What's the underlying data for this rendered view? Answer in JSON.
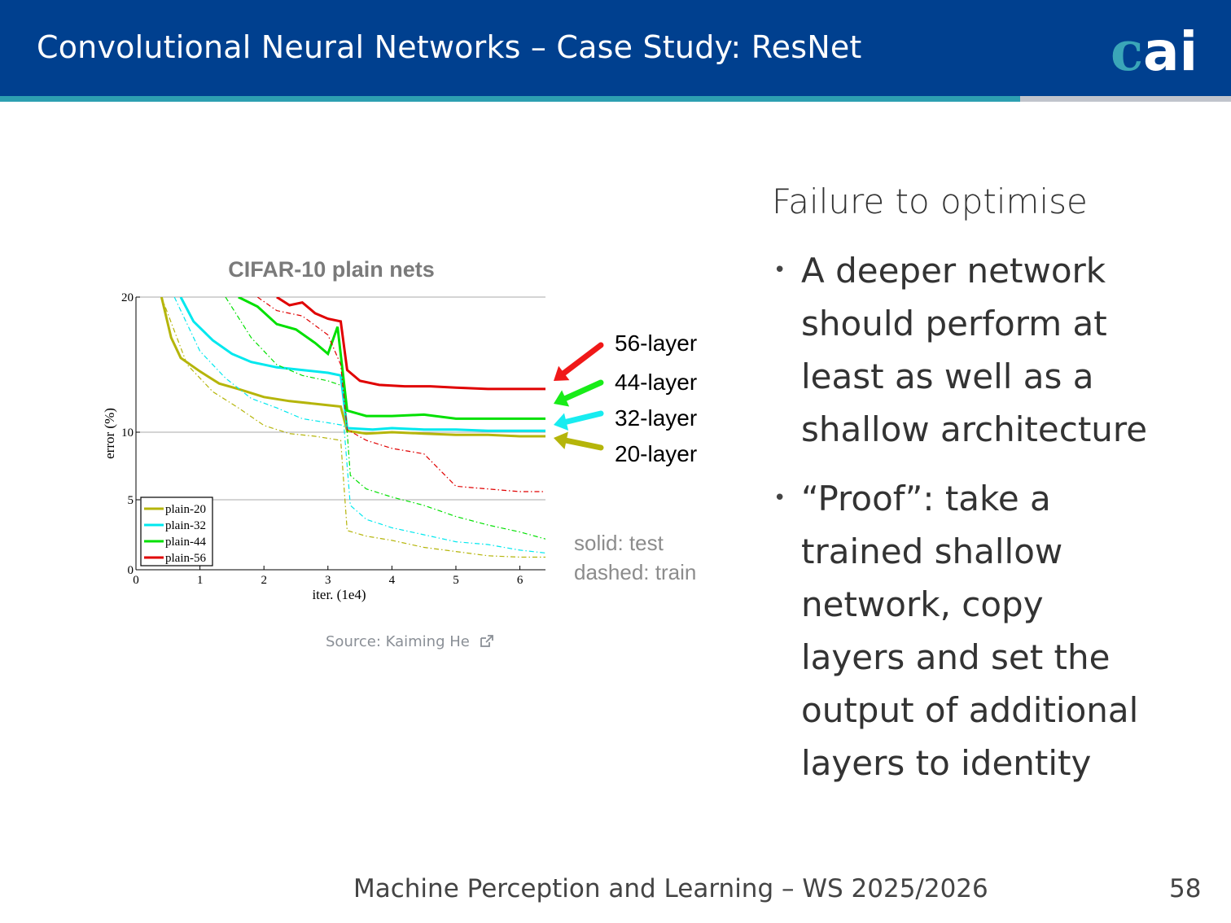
{
  "header": {
    "title": "Convolutional Neural Networks – Case Study: ResNet",
    "logo_text": "cai"
  },
  "colors": {
    "header_bg": "#00408f",
    "accent_line": "#2d9fb1",
    "logo_teal": "#3aa6b8"
  },
  "figure": {
    "title": "CIFAR-10 plain nets",
    "layer_labels": [
      "56-layer",
      "44-layer",
      "32-layer",
      "20-layer"
    ],
    "note_solid": "solid: test",
    "note_dashed": "dashed: train",
    "source": "Source: Kaiming He"
  },
  "chart_data": {
    "type": "line",
    "title": "CIFAR-10 plain nets",
    "xlabel": "iter. (1e4)",
    "ylabel": "error (%)",
    "xlim": [
      0,
      6.4
    ],
    "ylim": [
      0,
      20
    ],
    "xticks": [
      "0",
      "1",
      "2",
      "3",
      "4",
      "5",
      "6"
    ],
    "yticks": [
      "0",
      "5",
      "10",
      "20"
    ],
    "legend": [
      "plain-20",
      "plain-32",
      "plain-44",
      "plain-56"
    ],
    "series": [
      {
        "name": "plain-20",
        "style": "test",
        "color": "#b5b50a",
        "x": [
          0.4,
          0.55,
          0.7,
          1.0,
          1.3,
          1.6,
          2.0,
          2.4,
          2.8,
          3.2,
          3.3,
          3.6,
          4.0,
          4.5,
          5.0,
          5.5,
          6.0,
          6.4
        ],
        "y": [
          20,
          17.0,
          15.5,
          14.5,
          13.6,
          13.2,
          12.6,
          12.3,
          12.1,
          11.9,
          10.1,
          9.9,
          10.0,
          9.9,
          9.8,
          9.8,
          9.7,
          9.7
        ]
      },
      {
        "name": "plain-32",
        "style": "test",
        "color": "#00e8ee",
        "x": [
          0.7,
          0.9,
          1.2,
          1.5,
          1.8,
          2.2,
          2.6,
          3.0,
          3.2,
          3.3,
          3.7,
          4.0,
          4.5,
          5.0,
          5.5,
          6.0,
          6.4
        ],
        "y": [
          20,
          18.2,
          16.8,
          15.8,
          15.2,
          14.8,
          14.6,
          14.4,
          14.2,
          10.3,
          10.2,
          10.3,
          10.2,
          10.2,
          10.1,
          10.1,
          10.1
        ]
      },
      {
        "name": "plain-44",
        "style": "test",
        "color": "#00e000",
        "x": [
          1.6,
          1.9,
          2.2,
          2.5,
          2.8,
          3.0,
          3.15,
          3.3,
          3.6,
          4.0,
          4.5,
          5.0,
          5.5,
          6.0,
          6.4
        ],
        "y": [
          20,
          19.3,
          18.0,
          17.6,
          16.6,
          15.8,
          17.8,
          11.6,
          11.2,
          11.2,
          11.3,
          11.0,
          11.0,
          11.0,
          11.0
        ]
      },
      {
        "name": "plain-56",
        "style": "test",
        "color": "#e00000",
        "x": [
          2.2,
          2.4,
          2.6,
          2.8,
          3.0,
          3.2,
          3.3,
          3.5,
          3.8,
          4.2,
          4.6,
          5.0,
          5.5,
          6.0,
          6.4
        ],
        "y": [
          20,
          19.4,
          19.6,
          18.8,
          18.4,
          18.2,
          14.6,
          13.8,
          13.5,
          13.4,
          13.4,
          13.3,
          13.2,
          13.2,
          13.2
        ]
      },
      {
        "name": "plain-20",
        "style": "train",
        "color": "#b5b50a",
        "x": [
          0.4,
          0.8,
          1.2,
          1.6,
          2.0,
          2.4,
          2.8,
          3.2,
          3.3,
          3.6,
          4.0,
          4.5,
          5.0,
          5.5,
          6.0,
          6.4
        ],
        "y": [
          20,
          15.0,
          13.0,
          11.8,
          10.5,
          9.9,
          9.7,
          9.4,
          2.8,
          2.4,
          2.1,
          1.6,
          1.3,
          1.0,
          0.9,
          0.9
        ]
      },
      {
        "name": "plain-32",
        "style": "train",
        "color": "#00e8ee",
        "x": [
          0.6,
          1.0,
          1.4,
          1.8,
          2.2,
          2.6,
          3.0,
          3.25,
          3.35,
          3.6,
          4.0,
          4.5,
          5.0,
          5.5,
          6.0,
          6.4
        ],
        "y": [
          20,
          16.0,
          14.0,
          12.5,
          11.8,
          11.0,
          10.7,
          10.5,
          4.6,
          3.6,
          3.0,
          2.5,
          2.0,
          1.8,
          1.4,
          1.2
        ]
      },
      {
        "name": "plain-44",
        "style": "train",
        "color": "#00e000",
        "x": [
          1.4,
          1.8,
          2.2,
          2.6,
          3.0,
          3.25,
          3.35,
          3.6,
          4.0,
          4.5,
          5.0,
          5.5,
          6.0,
          6.4
        ],
        "y": [
          20,
          17.0,
          15.0,
          14.2,
          13.8,
          13.4,
          6.8,
          5.8,
          5.2,
          4.6,
          3.8,
          3.2,
          2.7,
          2.2
        ]
      },
      {
        "name": "plain-56",
        "style": "train",
        "color": "#e00000",
        "x": [
          1.9,
          2.2,
          2.6,
          3.0,
          3.2,
          3.3,
          3.6,
          4.0,
          4.5,
          5.0,
          5.5,
          6.0,
          6.4
        ],
        "y": [
          20,
          19.0,
          18.6,
          17.2,
          15.0,
          10.2,
          9.4,
          8.8,
          8.4,
          6.0,
          5.8,
          5.6,
          5.6
        ]
      }
    ]
  },
  "content": {
    "heading": "Failure to optimise",
    "bullets": [
      "A deeper network should perform at least as well as a shallow architecture",
      "“Proof”: take a trained shallow network, copy layers and set the output of additional layers to identity"
    ]
  },
  "footer": {
    "course": "Machine Perception and Learning – WS 2025/2026",
    "page": "58"
  }
}
